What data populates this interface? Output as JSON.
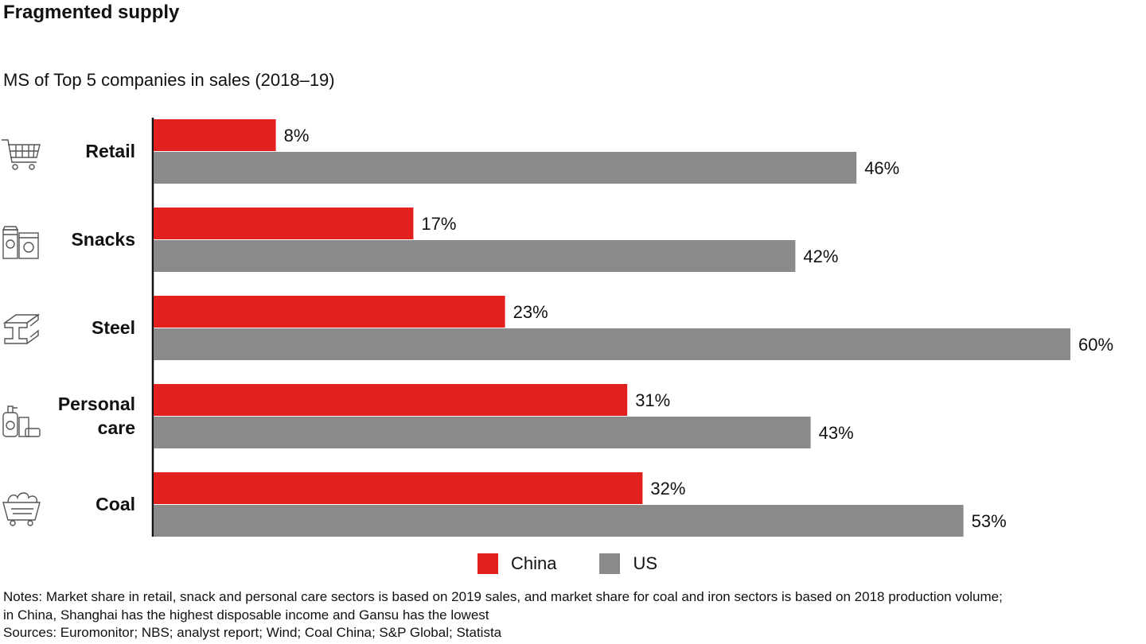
{
  "chart_data": {
    "type": "bar",
    "orientation": "horizontal",
    "title": "Fragmented supply",
    "subtitle": "MS of Top 5 companies in sales (2018–19)",
    "categories": [
      {
        "label_lines": [
          "Retail"
        ],
        "icon": "shopping-cart-icon"
      },
      {
        "label_lines": [
          "Snacks"
        ],
        "icon": "snack-packages-icon"
      },
      {
        "label_lines": [
          "Steel"
        ],
        "icon": "steel-beam-icon"
      },
      {
        "label_lines": [
          "Personal",
          "care"
        ],
        "icon": "personal-care-bottles-icon"
      },
      {
        "label_lines": [
          "Coal"
        ],
        "icon": "coal-cart-icon"
      }
    ],
    "series": [
      {
        "name": "China",
        "color": "#e2201e",
        "values": [
          8,
          17,
          23,
          31,
          32
        ],
        "labels": [
          "8%",
          "17%",
          "23%",
          "31%",
          "32%"
        ]
      },
      {
        "name": "US",
        "color": "#8a8a8a",
        "values": [
          46,
          42,
          60,
          43,
          53
        ],
        "labels": [
          "46%",
          "42%",
          "60%",
          "43%",
          "53%"
        ]
      }
    ],
    "xlim": [
      0,
      60
    ],
    "grid": false,
    "legend_position": "bottom"
  },
  "notes": {
    "line1": "Notes:  Market share in retail, snack and personal care sectors is based on 2019 sales, and market share for coal and iron sectors is based on 2018 production volume;",
    "line2": "in China, Shanghai has the highest disposable income and Gansu has the lowest",
    "sources": "Sources: Euromonitor; NBS; analyst report; Wind; Coal China; S&P Global; Statista"
  }
}
